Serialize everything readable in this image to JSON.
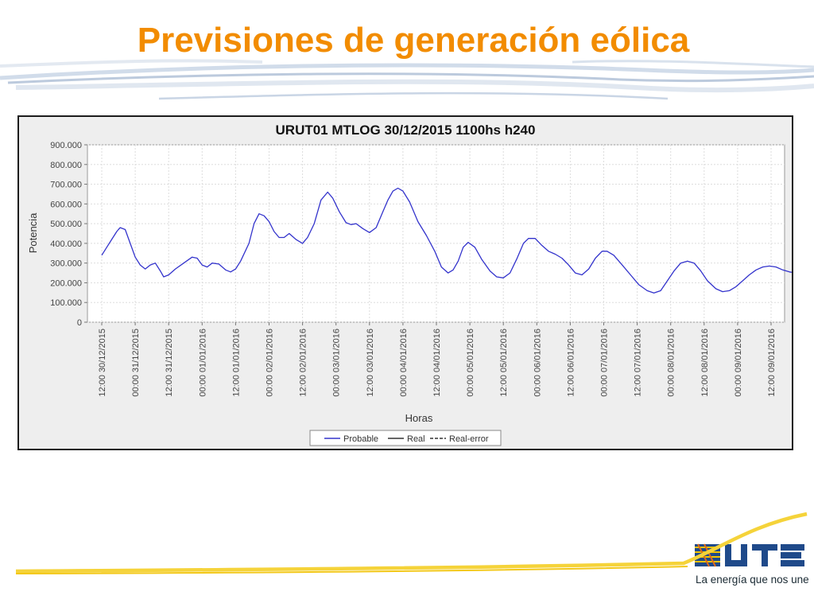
{
  "slide": {
    "title": "Previsiones de generación eólica"
  },
  "brand": {
    "logo_text": "UTE",
    "tagline": "La energía que nos une",
    "colors": {
      "title": "#f28c00",
      "swoosh": "#f2c200",
      "logo_blue": "#1f4a8a"
    }
  },
  "chart_data": {
    "type": "line",
    "title": "URUT01  MTLOG  30/12/2015  1100hs   h240",
    "xlabel": "Horas",
    "ylabel": "Potencia",
    "ylim": [
      0,
      900000
    ],
    "y_ticks": [
      "0",
      "100.000",
      "200.000",
      "300.000",
      "400.000",
      "500.000",
      "600.000",
      "700.000",
      "800.000",
      "900.000"
    ],
    "x_ticks": [
      "12:00 30/12/2015",
      "00:00 31/12/2015",
      "12:00 31/12/2015",
      "00:00 01/01/2016",
      "12:00 01/01/2016",
      "00:00 02/01/2016",
      "12:00 02/01/2016",
      "00:00 03/01/2016",
      "12:00 03/01/2016",
      "00:00 04/01/2016",
      "12:00 04/01/2016",
      "00:00 05/01/2016",
      "12:00 05/01/2016",
      "00:00 06/01/2016",
      "12:00 06/01/2016",
      "00:00 07/01/2016",
      "12:00 07/01/2016",
      "00:00 08/01/2016",
      "12:00 08/01/2016",
      "00:00 09/01/2016",
      "12:00 09/01/2016"
    ],
    "grid": true,
    "legend_position": "bottom",
    "legend": [
      "Probable",
      "Real",
      "Real-error"
    ],
    "series": [
      {
        "name": "Probable",
        "color": "#3333cc",
        "points": [
          [
            0,
            340000
          ],
          [
            0.15,
            380000
          ],
          [
            0.3,
            420000
          ],
          [
            0.45,
            460000
          ],
          [
            0.5,
            470000
          ],
          [
            0.55,
            480000
          ],
          [
            0.7,
            470000
          ],
          [
            0.85,
            400000
          ],
          [
            1.0,
            330000
          ],
          [
            1.15,
            290000
          ],
          [
            1.3,
            270000
          ],
          [
            1.45,
            290000
          ],
          [
            1.6,
            300000
          ],
          [
            1.75,
            260000
          ],
          [
            1.85,
            230000
          ],
          [
            2.0,
            240000
          ],
          [
            2.2,
            270000
          ],
          [
            2.45,
            300000
          ],
          [
            2.7,
            330000
          ],
          [
            2.85,
            325000
          ],
          [
            3.0,
            290000
          ],
          [
            3.15,
            280000
          ],
          [
            3.3,
            300000
          ],
          [
            3.5,
            295000
          ],
          [
            3.7,
            265000
          ],
          [
            3.85,
            255000
          ],
          [
            4.0,
            270000
          ],
          [
            4.15,
            310000
          ],
          [
            4.4,
            400000
          ],
          [
            4.55,
            500000
          ],
          [
            4.7,
            550000
          ],
          [
            4.85,
            540000
          ],
          [
            5.0,
            510000
          ],
          [
            5.15,
            460000
          ],
          [
            5.3,
            430000
          ],
          [
            5.45,
            430000
          ],
          [
            5.6,
            450000
          ],
          [
            5.8,
            420000
          ],
          [
            6.0,
            400000
          ],
          [
            6.15,
            430000
          ],
          [
            6.35,
            500000
          ],
          [
            6.55,
            620000
          ],
          [
            6.75,
            660000
          ],
          [
            6.9,
            630000
          ],
          [
            7.1,
            560000
          ],
          [
            7.3,
            505000
          ],
          [
            7.45,
            495000
          ],
          [
            7.6,
            500000
          ],
          [
            7.8,
            475000
          ],
          [
            8.0,
            455000
          ],
          [
            8.2,
            480000
          ],
          [
            8.4,
            560000
          ],
          [
            8.55,
            620000
          ],
          [
            8.7,
            665000
          ],
          [
            8.85,
            680000
          ],
          [
            9.0,
            665000
          ],
          [
            9.2,
            610000
          ],
          [
            9.45,
            510000
          ],
          [
            9.7,
            440000
          ],
          [
            9.95,
            360000
          ],
          [
            10.15,
            280000
          ],
          [
            10.35,
            250000
          ],
          [
            10.5,
            265000
          ],
          [
            10.65,
            310000
          ],
          [
            10.8,
            380000
          ],
          [
            10.95,
            405000
          ],
          [
            11.15,
            380000
          ],
          [
            11.35,
            320000
          ],
          [
            11.6,
            260000
          ],
          [
            11.8,
            230000
          ],
          [
            12.0,
            225000
          ],
          [
            12.2,
            250000
          ],
          [
            12.4,
            320000
          ],
          [
            12.6,
            400000
          ],
          [
            12.75,
            425000
          ],
          [
            12.95,
            425000
          ],
          [
            13.15,
            390000
          ],
          [
            13.35,
            360000
          ],
          [
            13.55,
            345000
          ],
          [
            13.75,
            325000
          ],
          [
            13.95,
            290000
          ],
          [
            14.15,
            250000
          ],
          [
            14.35,
            240000
          ],
          [
            14.55,
            270000
          ],
          [
            14.75,
            325000
          ],
          [
            14.95,
            360000
          ],
          [
            15.1,
            360000
          ],
          [
            15.3,
            340000
          ],
          [
            15.55,
            290000
          ],
          [
            15.8,
            240000
          ],
          [
            16.05,
            190000
          ],
          [
            16.3,
            160000
          ],
          [
            16.5,
            148000
          ],
          [
            16.7,
            160000
          ],
          [
            16.9,
            210000
          ],
          [
            17.1,
            260000
          ],
          [
            17.3,
            300000
          ],
          [
            17.5,
            310000
          ],
          [
            17.7,
            300000
          ],
          [
            17.9,
            260000
          ],
          [
            18.1,
            210000
          ],
          [
            18.35,
            170000
          ],
          [
            18.55,
            155000
          ],
          [
            18.75,
            160000
          ],
          [
            18.95,
            180000
          ],
          [
            19.15,
            210000
          ],
          [
            19.35,
            240000
          ],
          [
            19.55,
            265000
          ],
          [
            19.75,
            280000
          ],
          [
            19.95,
            285000
          ],
          [
            20.15,
            280000
          ],
          [
            20.35,
            265000
          ],
          [
            20.55,
            255000
          ],
          [
            20.75,
            250000
          ]
        ]
      },
      {
        "name": "Real",
        "color": "#333333",
        "points": []
      },
      {
        "name": "Real-error",
        "color": "#333333",
        "points": []
      }
    ]
  }
}
